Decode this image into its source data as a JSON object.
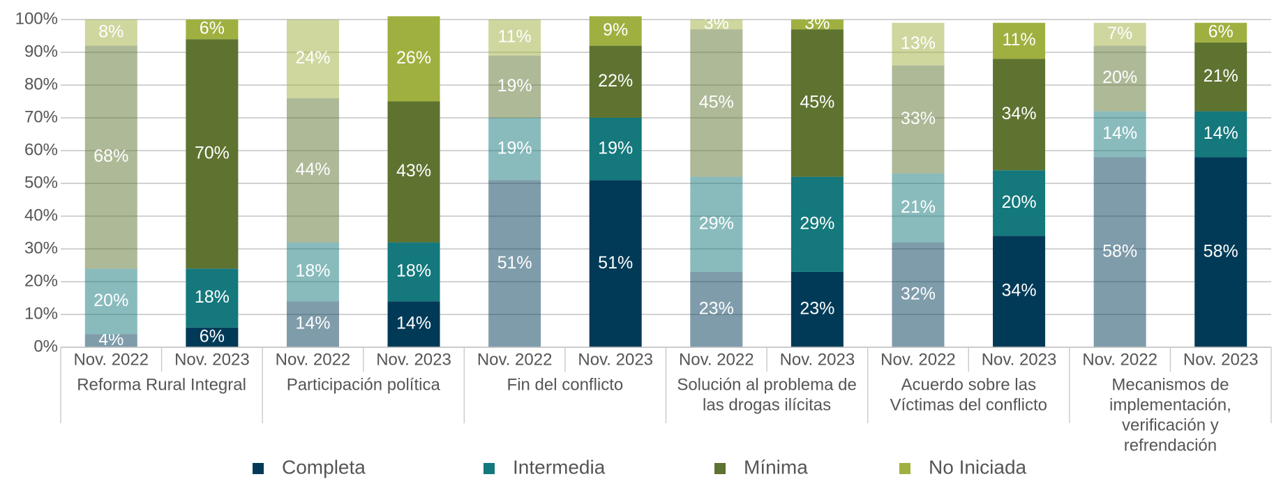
{
  "chart_data": {
    "type": "stacked_bar",
    "categories": [
      "Nov. 2022",
      "Nov. 2023",
      "Nov. 2022",
      "Nov. 2023",
      "Nov. 2022",
      "Nov. 2023",
      "Nov. 2022",
      "Nov. 2023",
      "Nov. 2022",
      "Nov. 2023",
      "Nov. 2022",
      "Nov. 2023"
    ],
    "groups": [
      [
        "Reforma Rural Integral"
      ],
      [
        "Participación política"
      ],
      [
        "Fin del conflicto"
      ],
      [
        "Solución al problema de",
        "las drogas ilícitas"
      ],
      [
        "Acuerdo sobre las",
        "Víctimas del conflicto"
      ],
      [
        "Mecanismos de",
        "implementación,",
        "verificación y",
        "refrendación"
      ]
    ],
    "faded": [
      true,
      false,
      true,
      false,
      true,
      false,
      true,
      false,
      true,
      false,
      true,
      false
    ],
    "faded_opacity": 0.5,
    "series": [
      {
        "name": "Completa",
        "color": "#003a57",
        "values": [
          4,
          6,
          14,
          14,
          51,
          51,
          23,
          23,
          32,
          34,
          58,
          58
        ],
        "value_labels": [
          "4%",
          "6%",
          "14%",
          "14%",
          "51%",
          "51%",
          "23%",
          "23%",
          "32%",
          "34%",
          "58%",
          "58%"
        ]
      },
      {
        "name": "Intermedia",
        "color": "#14787c",
        "values": [
          20,
          18,
          18,
          18,
          19,
          19,
          29,
          29,
          21,
          20,
          14,
          14
        ],
        "value_labels": [
          "20%",
          "18%",
          "18%",
          "18%",
          "19%",
          "19%",
          "29%",
          "29%",
          "21%",
          "20%",
          "14%",
          "14%"
        ]
      },
      {
        "name": "Mínima",
        "color": "#5e7330",
        "values": [
          68,
          70,
          44,
          43,
          19,
          22,
          45,
          45,
          33,
          34,
          20,
          21
        ],
        "value_labels": [
          "68%",
          "70%",
          "44%",
          "43%",
          "19%",
          "22%",
          "45%",
          "45%",
          "33%",
          "34%",
          "20%",
          "21%"
        ]
      },
      {
        "name": "No Iniciada",
        "color": "#a0b040",
        "values": [
          8,
          6,
          24,
          26,
          11,
          9,
          3,
          3,
          13,
          11,
          7,
          6
        ],
        "value_labels": [
          "8%",
          "6%",
          "24%",
          "26%",
          "11%",
          "9%",
          "3%",
          "3%",
          "13%",
          "11%",
          "7%",
          "6%"
        ]
      }
    ],
    "ylim": [
      0,
      100
    ],
    "yticks": [
      {
        "value": 0,
        "label": "0%"
      },
      {
        "value": 10,
        "label": "10%"
      },
      {
        "value": 20,
        "label": "20%"
      },
      {
        "value": 30,
        "label": "30%"
      },
      {
        "value": 40,
        "label": "40%"
      },
      {
        "value": 50,
        "label": "50%"
      },
      {
        "value": 60,
        "label": "60%"
      },
      {
        "value": 70,
        "label": "70%"
      },
      {
        "value": 80,
        "label": "80%"
      },
      {
        "value": 90,
        "label": "90%"
      },
      {
        "value": 100,
        "label": "100%"
      }
    ],
    "grid": true
  }
}
